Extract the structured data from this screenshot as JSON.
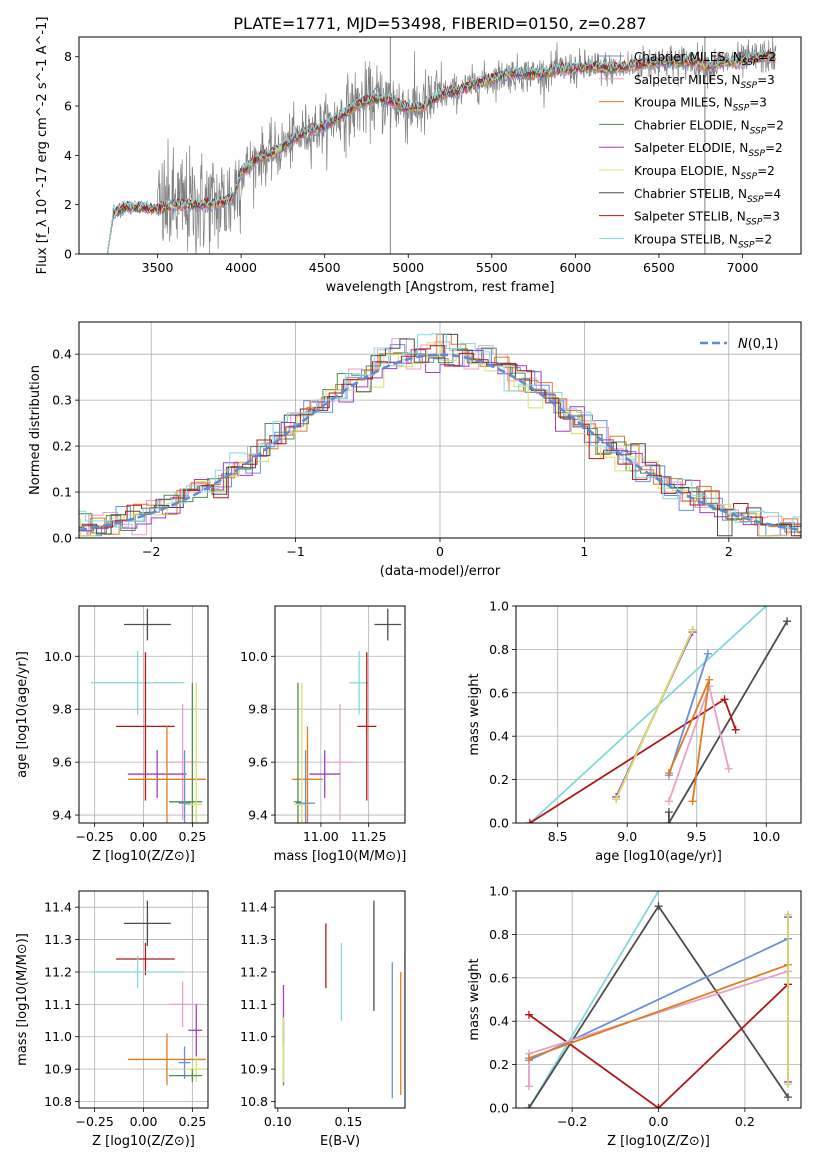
{
  "title": "PLATE=1771, MJD=53498, FIBERID=0150, z=0.287",
  "colors": {
    "Chabrier MILES": "#6a8fd8",
    "Salpeter MILES": "#e8a0c8",
    "Kroupa MILES": "#dd7d1f",
    "Chabrier ELODIE": "#4e8f4e",
    "Salpeter ELODIE": "#a43ec4",
    "Kroupa ELODIE": "#d8e06a",
    "Chabrier STELIB": "#4d4d4d",
    "Salpeter STELIB": "#b01818",
    "Kroupa STELIB": "#84d8dc",
    "spectrum": "#808080",
    "gaussian": "#5b8ad6"
  },
  "chart_data": [
    {
      "id": "spectrum",
      "type": "line",
      "xlabel": "wavelength [Angstrom, rest frame]",
      "ylabel": "Flux [f_λ 10^-17 erg cm^-2 s^-1 A^-1]",
      "xlim": [
        3030,
        7350
      ],
      "ylim": [
        0,
        8.8
      ],
      "xticks": [
        3500,
        4000,
        4500,
        5000,
        5500,
        6000,
        6500,
        7000
      ],
      "yticks": [
        0,
        2,
        4,
        6,
        8
      ],
      "grid": false,
      "legend": "top-right",
      "data_envelope": {
        "x": [
          3200,
          3260,
          3300,
          3400,
          3500,
          3600,
          3700,
          3800,
          3900,
          3950,
          4000,
          4100,
          4200,
          4300,
          4400,
          4500,
          4600,
          4700,
          4800,
          4900,
          5000,
          5100,
          5200,
          5300,
          5400,
          5500,
          5600,
          5700,
          5800,
          5900,
          6000,
          6100,
          6200,
          6300,
          6400,
          6500,
          6600,
          6700,
          6800,
          6900,
          7000,
          7100,
          7200
        ],
        "y": [
          1.8,
          1.7,
          1.9,
          1.9,
          1.8,
          2.0,
          2.0,
          2.0,
          2.1,
          2.3,
          3.3,
          3.9,
          4.1,
          4.6,
          5.0,
          5.2,
          5.6,
          6.1,
          6.3,
          6.2,
          5.9,
          6.0,
          6.5,
          6.6,
          6.9,
          7.1,
          7.3,
          7.3,
          7.3,
          7.5,
          7.5,
          7.6,
          7.5,
          7.6,
          7.7,
          7.8,
          7.8,
          7.8,
          7.6,
          7.8,
          7.8,
          8.0,
          8.0
        ],
        "noise": "large scatter 3500-4000 A (0 to 4), spikes near 4890 A and 6775 A"
      },
      "series": [
        {
          "name": "Chabrier MILES, N_SSP=2",
          "key": "Chabrier MILES"
        },
        {
          "name": "Salpeter MILES, N_SSP=3",
          "key": "Salpeter MILES"
        },
        {
          "name": "Kroupa MILES, N_SSP=3",
          "key": "Kroupa MILES"
        },
        {
          "name": "Chabrier ELODIE, N_SSP=2",
          "key": "Chabrier ELODIE"
        },
        {
          "name": "Salpeter ELODIE, N_SSP=2",
          "key": "Salpeter ELODIE"
        },
        {
          "name": "Kroupa ELODIE, N_SSP=2",
          "key": "Kroupa ELODIE"
        },
        {
          "name": "Chabrier STELIB, N_SSP=4",
          "key": "Chabrier STELIB"
        },
        {
          "name": "Salpeter STELIB, N_SSP=3",
          "key": "Salpeter STELIB"
        },
        {
          "name": "Kroupa STELIB, N_SSP=2",
          "key": "Kroupa STELIB"
        }
      ]
    },
    {
      "id": "residuals",
      "type": "histogram",
      "xlabel": "(data-model)/error",
      "ylabel": "Normed distribution",
      "xlim": [
        -2.5,
        2.5
      ],
      "ylim": [
        0,
        0.47
      ],
      "xticks": [
        -2,
        -1,
        0,
        1,
        2
      ],
      "yticks": [
        0.0,
        0.1,
        0.2,
        0.3,
        0.4
      ],
      "grid": true,
      "legend": "top-right",
      "legend_label": "N(0,1)",
      "bin_width": 0.1
    },
    {
      "id": "age_vs_Z",
      "type": "errorbar",
      "xlabel": "Z [log10(Z/Z⊙)]",
      "ylabel": "age  [log10(age/yr)]",
      "xlim": [
        -0.33,
        0.33
      ],
      "ylim": [
        9.37,
        10.19
      ],
      "xticks": [
        -0.25,
        0.0,
        0.25
      ],
      "yticks": [
        9.4,
        9.6,
        9.8,
        10.0
      ],
      "grid": true,
      "points": [
        {
          "key": "Chabrier STELIB",
          "x": 0.02,
          "y": 10.12,
          "xerr": [
            0.12,
            0.12
          ],
          "yerr": [
            0.06,
            0.06
          ]
        },
        {
          "key": "Kroupa STELIB",
          "x": -0.03,
          "y": 9.9,
          "xerr": [
            0.24,
            0.24
          ],
          "yerr": [
            0.12,
            0.12
          ]
        },
        {
          "key": "Salpeter STELIB",
          "x": 0.01,
          "y": 9.735,
          "xerr": [
            0.15,
            0.15
          ],
          "yerr": [
            0.28,
            0.28
          ]
        },
        {
          "key": "Salpeter MILES",
          "x": 0.2,
          "y": 9.6,
          "xerr": [
            0.07,
            0.1
          ],
          "yerr": [
            0.22,
            0.22
          ]
        },
        {
          "key": "Salpeter ELODIE",
          "x": 0.07,
          "y": 9.555,
          "xerr": [
            0.15,
            0.15
          ],
          "yerr": [
            0.09,
            0.09
          ]
        },
        {
          "key": "Kroupa MILES",
          "x": 0.12,
          "y": 9.535,
          "xerr": [
            0.2,
            0.2
          ],
          "yerr": [
            0.2,
            0.2
          ]
        },
        {
          "key": "Chabrier ELODIE",
          "x": 0.25,
          "y": 9.45,
          "xerr": [
            0.12,
            0.05
          ],
          "yerr": [
            0.45,
            0.45
          ]
        },
        {
          "key": "Kroupa ELODIE",
          "x": 0.27,
          "y": 9.44,
          "xerr": [
            0.06,
            0.03
          ],
          "yerr": [
            0.46,
            0.46
          ]
        },
        {
          "key": "Chabrier MILES",
          "x": 0.21,
          "y": 9.445,
          "xerr": [
            0.03,
            0.03
          ],
          "yerr": [
            0.2,
            0.2
          ]
        }
      ]
    },
    {
      "id": "age_vs_mass",
      "type": "errorbar",
      "xlabel": "mass [log10(M/M⊙)]",
      "ylabel": "",
      "xlim": [
        10.76,
        11.44
      ],
      "ylim": [
        9.37,
        10.19
      ],
      "xticks": [
        11.0,
        11.25
      ],
      "yticks": [
        9.4,
        9.6,
        9.8,
        10.0
      ],
      "grid": true,
      "points": [
        {
          "key": "Chabrier STELIB",
          "x": 11.35,
          "y": 10.12,
          "xerr": [
            0.07,
            0.07
          ],
          "yerr": [
            0.06,
            0.06
          ]
        },
        {
          "key": "Kroupa STELIB",
          "x": 11.2,
          "y": 9.9,
          "xerr": [
            0.05,
            0.05
          ],
          "yerr": [
            0.12,
            0.12
          ]
        },
        {
          "key": "Salpeter STELIB",
          "x": 11.24,
          "y": 9.735,
          "xerr": [
            0.05,
            0.05
          ],
          "yerr": [
            0.28,
            0.28
          ]
        },
        {
          "key": "Salpeter MILES",
          "x": 11.1,
          "y": 9.6,
          "xerr": [
            0.07,
            0.07
          ],
          "yerr": [
            0.22,
            0.22
          ]
        },
        {
          "key": "Salpeter ELODIE",
          "x": 11.02,
          "y": 9.555,
          "xerr": [
            0.08,
            0.08
          ],
          "yerr": [
            0.09,
            0.09
          ]
        },
        {
          "key": "Kroupa MILES",
          "x": 10.93,
          "y": 9.535,
          "xerr": [
            0.08,
            0.08
          ],
          "yerr": [
            0.2,
            0.2
          ]
        },
        {
          "key": "Chabrier ELODIE",
          "x": 10.88,
          "y": 9.45,
          "xerr": [
            0.02,
            0.02
          ],
          "yerr": [
            0.45,
            0.45
          ]
        },
        {
          "key": "Kroupa ELODIE",
          "x": 10.9,
          "y": 9.44,
          "xerr": [
            0.04,
            0.04
          ],
          "yerr": [
            0.46,
            0.46
          ]
        },
        {
          "key": "Chabrier MILES",
          "x": 10.92,
          "y": 9.445,
          "xerr": [
            0.05,
            0.05
          ],
          "yerr": [
            0.2,
            0.2
          ]
        }
      ]
    },
    {
      "id": "mass_weight_vs_age",
      "type": "line",
      "xlabel": "age  [log10(age/yr)]",
      "ylabel": "mass weight",
      "xlim": [
        8.2,
        10.25
      ],
      "ylim": [
        0,
        1.0
      ],
      "xticks": [
        8.5,
        9.0,
        9.5,
        10.0
      ],
      "yticks": [
        0.0,
        0.2,
        0.4,
        0.6,
        0.8,
        1.0
      ],
      "grid": true,
      "series": [
        {
          "key": "Kroupa STELIB",
          "x": [
            8.3,
            10.0
          ],
          "y": [
            0.0,
            1.0
          ]
        },
        {
          "key": "Chabrier STELIB",
          "x": [
            9.3,
            9.3,
            10.15
          ],
          "y": [
            0.05,
            0.0,
            0.93
          ]
        },
        {
          "key": "Salpeter STELIB",
          "x": [
            8.3,
            9.7,
            9.78
          ],
          "y": [
            0.0,
            0.57,
            0.43
          ]
        },
        {
          "key": "Chabrier MILES",
          "x": [
            9.3,
            9.58
          ],
          "y": [
            0.22,
            0.78
          ]
        },
        {
          "key": "Salpeter MILES",
          "x": [
            9.3,
            9.59,
            9.73
          ],
          "y": [
            0.1,
            0.63,
            0.25
          ]
        },
        {
          "key": "Kroupa MILES",
          "x": [
            9.3,
            9.59,
            9.47
          ],
          "y": [
            0.23,
            0.66,
            0.1
          ]
        },
        {
          "key": "Chabrier ELODIE",
          "x": [
            8.92,
            9.47
          ],
          "y": [
            0.11,
            0.89
          ]
        },
        {
          "key": "Salpeter ELODIE",
          "x": [
            8.92,
            9.47
          ],
          "y": [
            0.12,
            0.88
          ]
        },
        {
          "key": "Kroupa ELODIE",
          "x": [
            8.92,
            9.47
          ],
          "y": [
            0.11,
            0.89
          ]
        }
      ]
    },
    {
      "id": "mass_vs_Z",
      "type": "errorbar",
      "xlabel": "Z [log10(Z/Z⊙)]",
      "ylabel": "mass [log10(M/M⊙)]",
      "xlim": [
        -0.33,
        0.33
      ],
      "ylim": [
        10.78,
        11.45
      ],
      "xticks": [
        -0.25,
        0.0,
        0.25
      ],
      "yticks": [
        10.8,
        10.9,
        11.0,
        11.1,
        11.2,
        11.3,
        11.4
      ],
      "grid": true,
      "points": [
        {
          "key": "Chabrier STELIB",
          "x": 0.02,
          "y": 11.35,
          "xerr": [
            0.12,
            0.12
          ],
          "yerr": [
            0.07,
            0.07
          ]
        },
        {
          "key": "Salpeter STELIB",
          "x": 0.01,
          "y": 11.24,
          "xerr": [
            0.15,
            0.15
          ],
          "yerr": [
            0.05,
            0.05
          ]
        },
        {
          "key": "Kroupa STELIB",
          "x": -0.03,
          "y": 11.2,
          "xerr": [
            0.24,
            0.24
          ],
          "yerr": [
            0.05,
            0.05
          ]
        },
        {
          "key": "Salpeter MILES",
          "x": 0.2,
          "y": 11.1,
          "xerr": [
            0.07,
            0.1
          ],
          "yerr": [
            0.07,
            0.07
          ]
        },
        {
          "key": "Salpeter ELODIE",
          "x": 0.27,
          "y": 11.02,
          "xerr": [
            0.04,
            0.03
          ],
          "yerr": [
            0.08,
            0.08
          ]
        },
        {
          "key": "Kroupa MILES",
          "x": 0.12,
          "y": 10.93,
          "xerr": [
            0.2,
            0.2
          ],
          "yerr": [
            0.08,
            0.08
          ]
        },
        {
          "key": "Chabrier MILES",
          "x": 0.21,
          "y": 10.92,
          "xerr": [
            0.03,
            0.03
          ],
          "yerr": [
            0.05,
            0.05
          ]
        },
        {
          "key": "Kroupa ELODIE",
          "x": 0.27,
          "y": 10.9,
          "xerr": [
            0.06,
            0.03
          ],
          "yerr": [
            0.04,
            0.04
          ]
        },
        {
          "key": "Chabrier ELODIE",
          "x": 0.25,
          "y": 10.88,
          "xerr": [
            0.12,
            0.05
          ],
          "yerr": [
            0.02,
            0.02
          ]
        }
      ]
    },
    {
      "id": "mass_vs_EBV",
      "type": "errorbar",
      "xlabel": "E(B-V)",
      "ylabel": "",
      "xlim": [
        0.098,
        0.19
      ],
      "ylim": [
        10.78,
        11.45
      ],
      "xticks": [
        0.1,
        0.15
      ],
      "yticks": [
        10.8,
        10.9,
        11.0,
        11.1,
        11.2,
        11.3,
        11.4
      ],
      "grid": false,
      "points": [
        {
          "key": "Chabrier STELIB",
          "x": 0.168,
          "y": 11.25,
          "xerr": [
            0,
            0
          ],
          "yerr": [
            0.17,
            0.17
          ]
        },
        {
          "key": "Salpeter STELIB",
          "x": 0.134,
          "y": 11.25,
          "xerr": [
            0,
            0
          ],
          "yerr": [
            0.1,
            0.1
          ]
        },
        {
          "key": "Kroupa STELIB",
          "x": 0.145,
          "y": 11.17,
          "xerr": [
            0,
            0
          ],
          "yerr": [
            0.12,
            0.12
          ]
        },
        {
          "key": "Salpeter MILES",
          "x": 0.19,
          "y": 11.05,
          "xerr": [
            0,
            0
          ],
          "yerr": [
            0.21,
            0.21
          ]
        },
        {
          "key": "Salpeter ELODIE",
          "x": 0.104,
          "y": 11.07,
          "xerr": [
            0,
            0
          ],
          "yerr": [
            0.09,
            0.09
          ]
        },
        {
          "key": "Chabrier MILES",
          "x": 0.181,
          "y": 11.02,
          "xerr": [
            0,
            0
          ],
          "yerr": [
            0.21,
            0.21
          ]
        },
        {
          "key": "Kroupa MILES",
          "x": 0.187,
          "y": 11.01,
          "xerr": [
            0,
            0
          ],
          "yerr": [
            0.19,
            0.19
          ]
        },
        {
          "key": "Chabrier ELODIE",
          "x": 0.104,
          "y": 10.95,
          "xerr": [
            0,
            0
          ],
          "yerr": [
            0.1,
            0.1
          ]
        },
        {
          "key": "Kroupa ELODIE",
          "x": 0.104,
          "y": 10.96,
          "xerr": [
            0,
            0
          ],
          "yerr": [
            0.1,
            0.1
          ]
        }
      ]
    },
    {
      "id": "mass_weight_vs_Z",
      "type": "line",
      "xlabel": "Z [log10(Z/Z⊙)]",
      "ylabel": "mass weight",
      "xlim": [
        -0.33,
        0.33
      ],
      "ylim": [
        0,
        1.0
      ],
      "xticks": [
        -0.2,
        0.0,
        0.2
      ],
      "yticks": [
        0.0,
        0.2,
        0.4,
        0.6,
        0.8,
        1.0
      ],
      "grid": true,
      "series": [
        {
          "key": "Kroupa STELIB",
          "x": [
            -0.3,
            0.0
          ],
          "y": [
            0.0,
            1.0
          ]
        },
        {
          "key": "Chabrier STELIB",
          "x": [
            -0.3,
            0.0,
            0.3
          ],
          "y": [
            0.0,
            0.93,
            0.05
          ]
        },
        {
          "key": "Salpeter STELIB",
          "x": [
            -0.3,
            0.0,
            0.3
          ],
          "y": [
            0.43,
            0.0,
            0.57
          ]
        },
        {
          "key": "Chabrier MILES",
          "x": [
            -0.3,
            0.3
          ],
          "y": [
            0.22,
            0.78
          ]
        },
        {
          "key": "Salpeter MILES",
          "x": [
            -0.3,
            -0.3,
            0.3
          ],
          "y": [
            0.1,
            0.25,
            0.63
          ]
        },
        {
          "key": "Kroupa MILES",
          "x": [
            -0.3,
            0.3
          ],
          "y": [
            0.23,
            0.66
          ]
        },
        {
          "key": "Chabrier ELODIE",
          "x": [
            0.3,
            0.3
          ],
          "y": [
            0.11,
            0.89
          ]
        },
        {
          "key": "Salpeter ELODIE",
          "x": [
            0.3,
            0.3
          ],
          "y": [
            0.12,
            0.88
          ]
        },
        {
          "key": "Kroupa ELODIE",
          "x": [
            0.3,
            0.3
          ],
          "y": [
            0.11,
            0.89
          ]
        }
      ]
    }
  ]
}
